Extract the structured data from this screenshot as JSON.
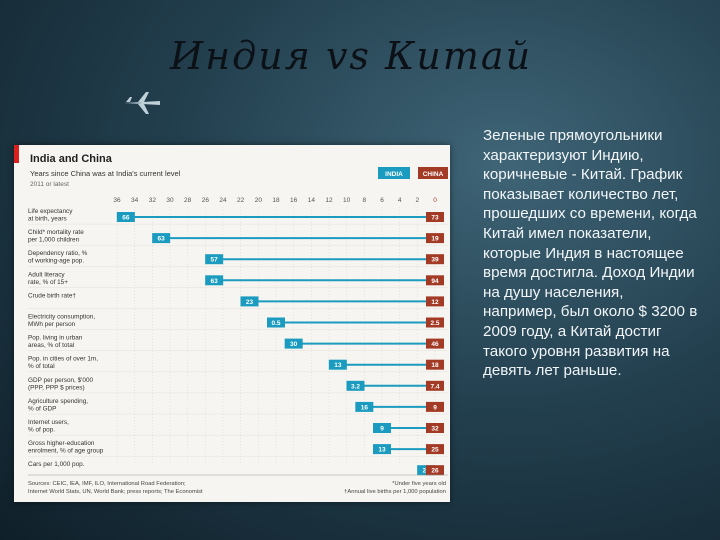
{
  "slide": {
    "title": "Индия vs Китай",
    "body": "Зеленые прямоугольники характеризуют Индию, коричневые - Китай. График показывает количество лет, прошедших со времени, когда Китай имел показатели, которые Индия в настоящее время достигла. Доход Индии на душу населения, например, был около $ 3200 в 2009 году, а Китай достиг такого уровня развития на девять лет раньше."
  },
  "colors": {
    "india": "#1b9bbf",
    "china": "#a33a25",
    "axis_text": "#555555"
  },
  "chart_data": {
    "type": "bar",
    "title": "India and China",
    "subtitle": "Years since China was at India's current level",
    "subtitle2": "2011 or latest",
    "legend": {
      "india": "INDIA",
      "china": "CHINA",
      "placement": "top-right"
    },
    "x_ticks": [
      36,
      34,
      32,
      30,
      28,
      26,
      24,
      22,
      20,
      18,
      16,
      14,
      12,
      10,
      8,
      6,
      4,
      2,
      0
    ],
    "xlim": [
      36,
      0
    ],
    "rows": [
      {
        "label1": "Life expectancy",
        "label2": "at birth, years",
        "years": 35,
        "india": "66",
        "china": "73"
      },
      {
        "label1": "Child* mortality rate",
        "label2": "per 1,000 children",
        "years": 31,
        "india": "63",
        "china": "19"
      },
      {
        "label1": "Dependency ratio, %",
        "label2": "of working-age pop.",
        "years": 25,
        "india": "57",
        "china": "39"
      },
      {
        "label1": "Adult literacy",
        "label2": "rate, % of 15+",
        "years": 25,
        "india": "63",
        "china": "94"
      },
      {
        "label1": "Crude birth rate†",
        "label2": "",
        "years": 21,
        "india": "23",
        "china": "12"
      },
      {
        "label1": "Electricity consumption,",
        "label2": "MWh per person",
        "years": 18,
        "india": "0.5",
        "china": "2.5"
      },
      {
        "label1": "Pop. living in urban",
        "label2": "areas, % of total",
        "years": 16,
        "india": "30",
        "china": "46"
      },
      {
        "label1": "Pop. in cities of over 1m,",
        "label2": "% of total",
        "years": 11,
        "india": "13",
        "china": "18"
      },
      {
        "label1": "GDP per person, $'000",
        "label2": "(PPP, PPP $ prices)",
        "years": 9,
        "india": "3.2",
        "china": "7.4"
      },
      {
        "label1": "Agriculture spending,",
        "label2": "% of GDP",
        "years": 8,
        "india": "16",
        "china": "9"
      },
      {
        "label1": "Internet users,",
        "label2": "% of pop.",
        "years": 6,
        "india": "9",
        "china": "32"
      },
      {
        "label1": "Gross higher-education",
        "label2": "enrolment, % of age group",
        "years": 6,
        "india": "13",
        "china": "25"
      },
      {
        "label1": "Cars per 1,000 pop.",
        "label2": "",
        "years": 1,
        "india": "24",
        "china": "26"
      }
    ],
    "footnotes": {
      "sources1": "Sources: CEIC, IEA, IMF, ILO, International Road Federation;",
      "sources2": "Internet World Stats, UN, World Bank; press reports; The Economist",
      "note1": "*Under five years old",
      "note2": "†Annual live births per 1,000 population"
    }
  }
}
